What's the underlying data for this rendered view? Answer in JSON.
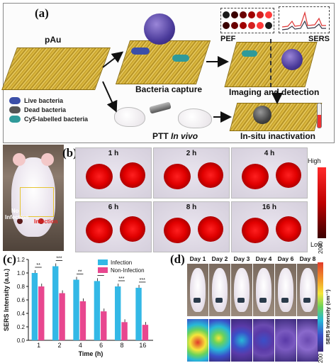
{
  "panel_a": {
    "letter": "(a)",
    "pau_label": "pAu",
    "capture_label": "Bacteria capture",
    "imaging_label": "Imaging and detection",
    "pef_label": "PEF",
    "sers_label": "SERS",
    "ptt_label": "PTT",
    "in_vivo_label": "In vivo",
    "inactivation_label": "In-situ inactivation",
    "legend": [
      {
        "label": "Live bacteria",
        "color": "#3b4fa8"
      },
      {
        "label": "Dead bacteria",
        "color": "#555555"
      },
      {
        "label": "Cy5-labelled bacteria",
        "color": "#2f9a9a"
      }
    ]
  },
  "panel_b": {
    "letter": "(b)",
    "no_infection_label": "No\nInfection",
    "infection_label": "Infection",
    "time_labels": [
      "1 h",
      "2 h",
      "4 h",
      "6 h",
      "8 h",
      "16 h"
    ],
    "colorbar_high": "High",
    "colorbar_low": "Low"
  },
  "panel_d": {
    "letter": "(d)",
    "days": [
      "Day 1",
      "Day 2",
      "Day 3",
      "Day 4",
      "Day 6",
      "Day 8"
    ],
    "colorbar_title": "SERS Intensity (cm⁻¹)",
    "colorbar_max": "2000",
    "colorbar_min": "200"
  },
  "chart_data": {
    "type": "bar",
    "title": "",
    "letter": "(c)",
    "xlabel": "Time (h)",
    "ylabel": "SERS Intensity (a.u.)",
    "ylim": [
      0.0,
      1.2
    ],
    "yticks": [
      "0.0",
      "0.2",
      "0.4",
      "0.6",
      "0.8",
      "1.0",
      "1.2"
    ],
    "categories": [
      "1",
      "2",
      "4",
      "6",
      "8",
      "16"
    ],
    "legend_position": "top-right",
    "series": [
      {
        "name": "Infection",
        "color": "#33b8e6",
        "values": [
          1.0,
          1.1,
          0.9,
          0.88,
          0.8,
          0.78
        ]
      },
      {
        "name": "Non-Infection",
        "color": "#e8478f",
        "values": [
          0.8,
          0.7,
          0.58,
          0.43,
          0.27,
          0.23
        ]
      }
    ],
    "significance": [
      "**",
      "***",
      "**",
      "***",
      "***",
      "***"
    ]
  }
}
